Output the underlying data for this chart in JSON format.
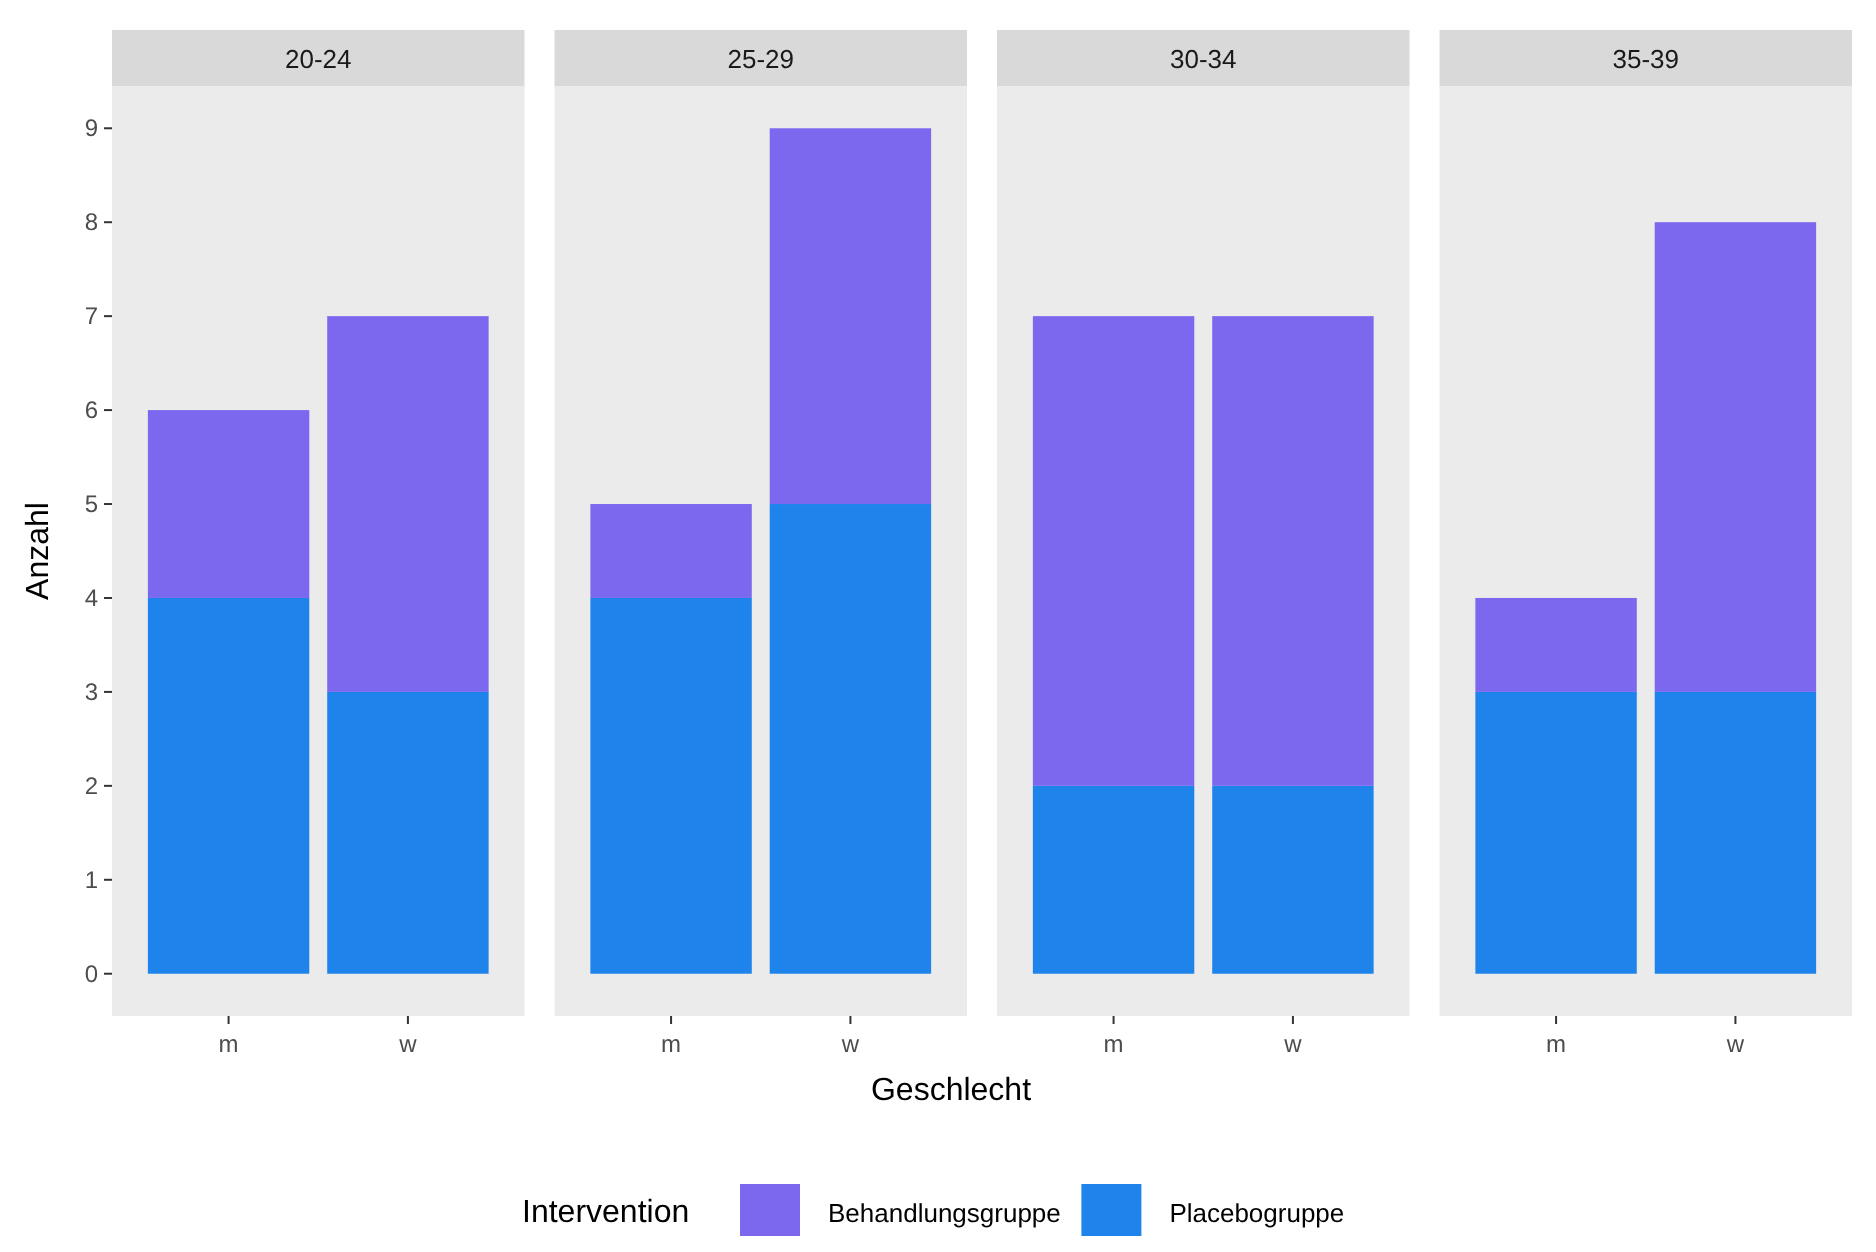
{
  "chart_data": [
    {
      "type": "bar",
      "stacked": true,
      "title": "20-24",
      "ylabel": "Anzahl",
      "legend": "bottom",
      "legend_title": "Intervention",
      "categories": [
        "m",
        "w"
      ],
      "ylim": [
        -0.45,
        9.45
      ],
      "yticks": [
        0,
        1,
        2,
        3,
        4,
        5,
        6,
        7,
        8,
        9
      ],
      "series": [
        {
          "name": "Placebogruppe",
          "color": "#1e84eb",
          "values": [
            4,
            3
          ]
        },
        {
          "name": "Behandlungsgruppe",
          "color": "#7b68ee",
          "values": [
            2,
            4
          ]
        }
      ]
    },
    {
      "type": "bar",
      "stacked": true,
      "title": "25-29",
      "xlabel": "Geschlecht",
      "tick_labels": "x",
      "categories": [
        "m",
        "w"
      ],
      "ylim": [
        -0.45,
        9.45
      ],
      "yticks": [
        0,
        1,
        2,
        3,
        4,
        5,
        6,
        7,
        8,
        9
      ],
      "series": [
        {
          "name": "Placebogruppe",
          "color": "#1e84eb",
          "values": [
            4,
            5
          ]
        },
        {
          "name": "Behandlungsgruppe",
          "color": "#7b68ee",
          "values": [
            1,
            4
          ]
        }
      ]
    },
    {
      "type": "bar",
      "stacked": true,
      "title": "30-34",
      "tick_labels": "x",
      "categories": [
        "m",
        "w"
      ],
      "ylim": [
        -0.45,
        9.45
      ],
      "yticks": [
        0,
        1,
        2,
        3,
        4,
        5,
        6,
        7,
        8,
        9
      ],
      "series": [
        {
          "name": "Placebogruppe",
          "color": "#1e84eb",
          "values": [
            2,
            2
          ]
        },
        {
          "name": "Behandlungsgruppe",
          "color": "#7b68ee",
          "values": [
            5,
            5
          ]
        }
      ]
    },
    {
      "type": "bar",
      "stacked": true,
      "title": "35-39",
      "tick_labels": "x",
      "categories": [
        "m",
        "w"
      ],
      "ylim": [
        -0.45,
        9.45
      ],
      "yticks": [
        0,
        1,
        2,
        3,
        4,
        5,
        6,
        7,
        8,
        9
      ],
      "series": [
        {
          "name": "Placebogruppe",
          "color": "#1e84eb",
          "values": [
            3,
            3
          ]
        },
        {
          "name": "Behandlungsgruppe",
          "color": "#7b68ee",
          "values": [
            1,
            5
          ]
        }
      ]
    }
  ]
}
